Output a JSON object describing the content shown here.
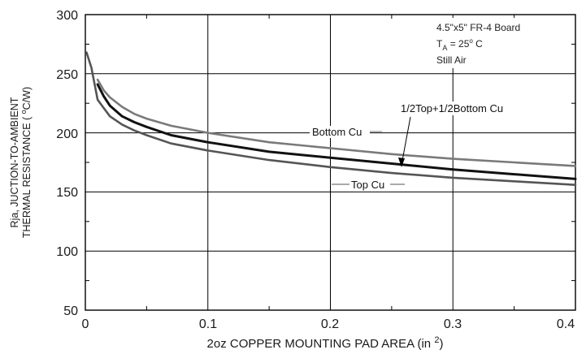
{
  "chart_data": {
    "type": "line",
    "title": "",
    "xlabel": "2oz COPPER MOUNTING PAD AREA (in",
    "xlabel_sup": "2",
    "xlabel_close": ")",
    "ylabel_line1": "Rja, JUCTION-TO-AMBIENT",
    "ylabel_line2": "THERMAL RESISTANCE (",
    "ylabel_line2_sup": "o",
    "ylabel_line2_end": "C/W)",
    "xlim": [
      0,
      0.4
    ],
    "ylim": [
      50,
      300
    ],
    "grid": true,
    "xticks": [
      0,
      0.1,
      0.2,
      0.3,
      0.4
    ],
    "xtick_labels": [
      "0",
      "0.1",
      "0.2",
      "0.3",
      "0.4"
    ],
    "yticks": [
      50,
      100,
      150,
      200,
      250,
      300
    ],
    "ytick_labels": [
      "50",
      "100",
      "150",
      "200",
      "250",
      "300"
    ],
    "series": [
      {
        "name": "Bottom Cu",
        "color": "#7a7a7a",
        "x": [
          0.01,
          0.015,
          0.02,
          0.03,
          0.04,
          0.05,
          0.07,
          0.1,
          0.15,
          0.2,
          0.25,
          0.3,
          0.35,
          0.4
        ],
        "y": [
          245,
          236,
          230,
          222,
          216,
          212,
          206,
          200,
          192,
          187,
          182,
          178,
          175,
          172
        ]
      },
      {
        "name": "1/2Top+1/2Bottom Cu",
        "color": "#111111",
        "x": [
          0.01,
          0.015,
          0.02,
          0.03,
          0.04,
          0.05,
          0.07,
          0.1,
          0.15,
          0.2,
          0.25,
          0.3,
          0.35,
          0.4
        ],
        "y": [
          241,
          231,
          223,
          214,
          209,
          205,
          198,
          192,
          184,
          179,
          174,
          169,
          165,
          161
        ]
      },
      {
        "name": "Top Cu",
        "color": "#555555",
        "x": [
          0.001,
          0.005,
          0.01,
          0.015,
          0.02,
          0.03,
          0.04,
          0.05,
          0.07,
          0.1,
          0.15,
          0.2,
          0.25,
          0.3,
          0.35,
          0.4
        ],
        "y": [
          268,
          255,
          228,
          221,
          214,
          207,
          202,
          198,
          191,
          185,
          177,
          171,
          166,
          162,
          159,
          156
        ]
      }
    ],
    "conditions": {
      "line1": "4.5\"x5\" FR-4 Board",
      "line2_main": "T",
      "line2_sub": "A",
      "line2_eq": " = 25",
      "line2_sup": "o",
      "line2_unit": " C",
      "line3": "Still Air"
    },
    "annotations": [
      {
        "text": "Bottom Cu"
      },
      {
        "text": "1/2Top+1/2Bottom Cu"
      },
      {
        "text": "Top Cu"
      }
    ]
  }
}
